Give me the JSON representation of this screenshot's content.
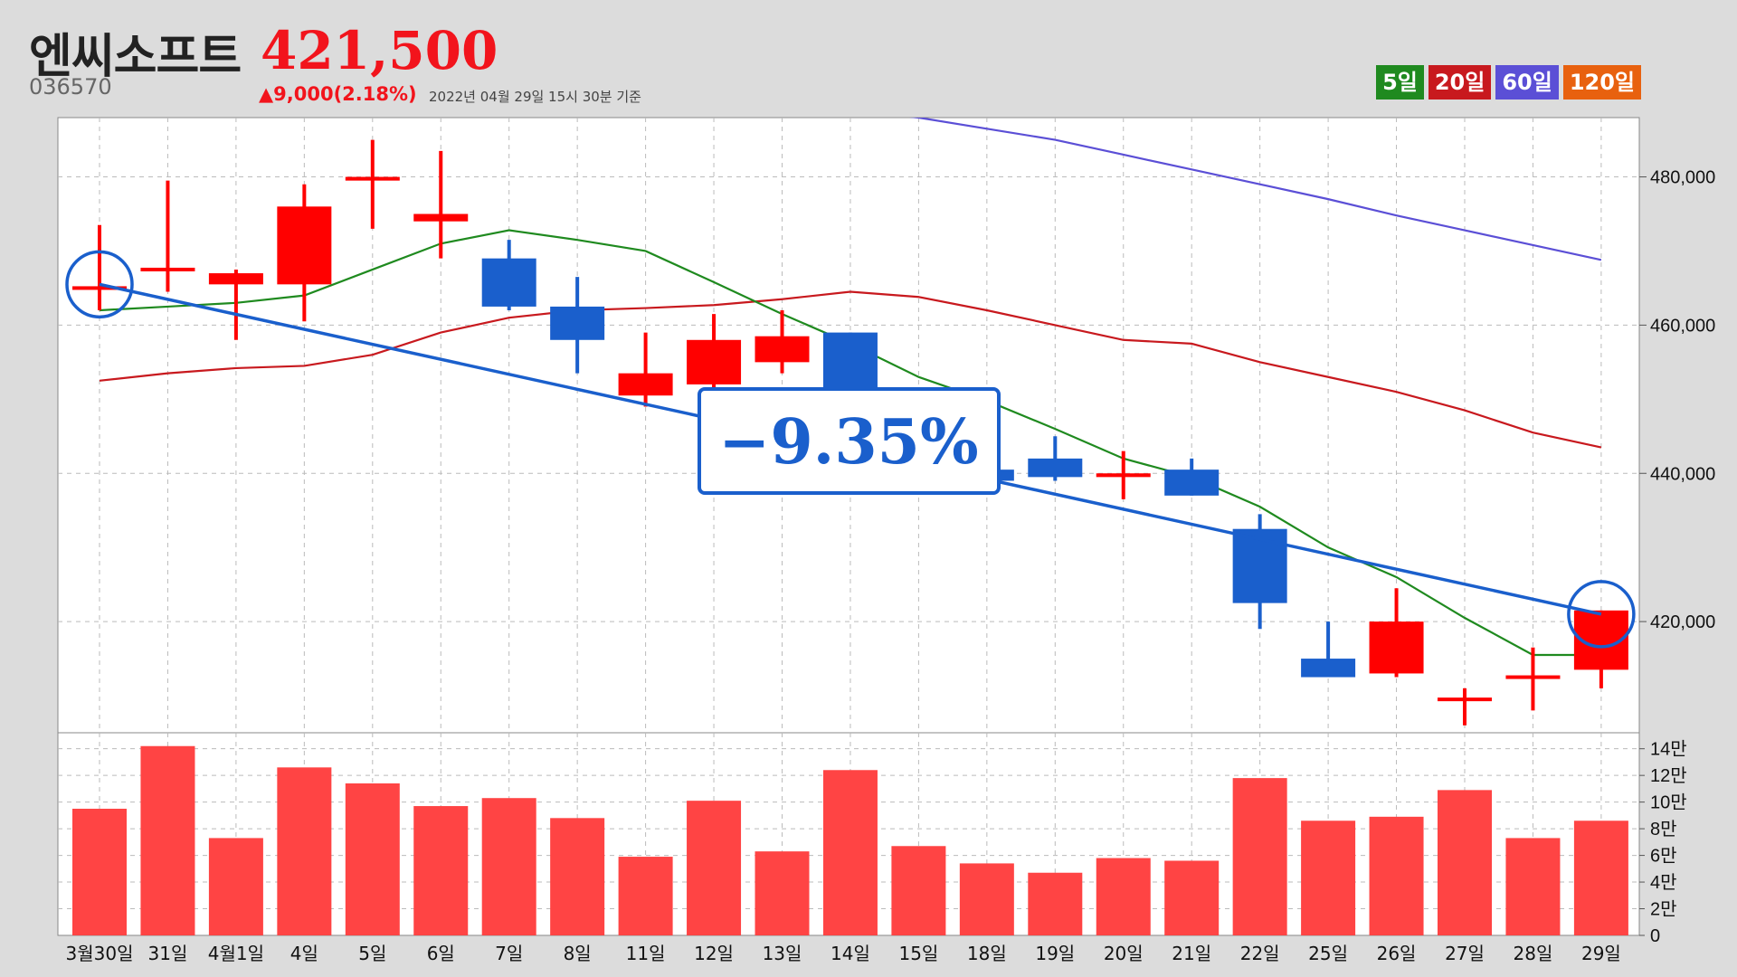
{
  "header": {
    "name": "엔씨소프트",
    "code": "036570",
    "price": "421,500",
    "change": "▲9,000(2.18%)",
    "timestamp": "2022년 04월 29일 15시 30분 기준"
  },
  "legend": [
    {
      "label": "5일",
      "color": "#1f8a1f"
    },
    {
      "label": "20일",
      "color": "#c8191e"
    },
    {
      "label": "60일",
      "color": "#5b4fd6"
    },
    {
      "label": "120일",
      "color": "#e8610f"
    }
  ],
  "colors": {
    "up": "#ff0000",
    "down": "#1a5fcc",
    "volume": "#ff4444",
    "trend": "#1a5fcc"
  },
  "callout": {
    "text": "−9.35%"
  },
  "chart_data": {
    "type": "candlestick",
    "categories": [
      "3월30일",
      "31일",
      "4월1일",
      "4일",
      "5일",
      "6일",
      "7일",
      "8일",
      "11일",
      "12일",
      "13일",
      "14일",
      "15일",
      "18일",
      "19일",
      "20일",
      "21일",
      "22일",
      "25일",
      "26일",
      "27일",
      "28일",
      "29일"
    ],
    "ohlc": [
      {
        "o": 465000,
        "h": 473500,
        "l": 462000,
        "c": 465000
      },
      {
        "o": 467500,
        "h": 479500,
        "l": 464500,
        "c": 467500
      },
      {
        "o": 465500,
        "h": 467500,
        "l": 458000,
        "c": 467000
      },
      {
        "o": 465500,
        "h": 479000,
        "l": 460500,
        "c": 476000
      },
      {
        "o": 479500,
        "h": 485000,
        "l": 473000,
        "c": 480000
      },
      {
        "o": 474000,
        "h": 483500,
        "l": 469000,
        "c": 475000
      },
      {
        "o": 469000,
        "h": 471500,
        "l": 462000,
        "c": 462500
      },
      {
        "o": 462500,
        "h": 466500,
        "l": 453500,
        "c": 458000
      },
      {
        "o": 450500,
        "h": 459000,
        "l": 449000,
        "c": 453500
      },
      {
        "o": 452000,
        "h": 461500,
        "l": 450500,
        "c": 458000
      },
      {
        "o": 455000,
        "h": 462000,
        "l": 453500,
        "c": 458500
      },
      {
        "o": 459000,
        "h": 459000,
        "l": 449000,
        "c": 449500
      },
      {
        "o": 449000,
        "h": 449500,
        "l": 442000,
        "c": 443000
      },
      {
        "o": 440500,
        "h": 443000,
        "l": 438500,
        "c": 439000
      },
      {
        "o": 442000,
        "h": 445000,
        "l": 439000,
        "c": 439500
      },
      {
        "o": 439500,
        "h": 443000,
        "l": 436500,
        "c": 440000
      },
      {
        "o": 440500,
        "h": 442000,
        "l": 437000,
        "c": 437000
      },
      {
        "o": 432500,
        "h": 434500,
        "l": 419000,
        "c": 422500
      },
      {
        "o": 415000,
        "h": 420000,
        "l": 412500,
        "c": 412500
      },
      {
        "o": 413000,
        "h": 424500,
        "l": 412500,
        "c": 420000
      },
      {
        "o": 409500,
        "h": 411000,
        "l": 406000,
        "c": 409500
      },
      {
        "o": 412500,
        "h": 416500,
        "l": 408000,
        "c": 412500
      },
      {
        "o": 413500,
        "h": 421500,
        "l": 411000,
        "c": 421500
      }
    ],
    "ma5": [
      462000,
      462500,
      463000,
      464000,
      467500,
      471000,
      472800,
      471500,
      470000,
      465800,
      461500,
      457500,
      453000,
      449800,
      446000,
      442000,
      439500,
      435500,
      430000,
      426000,
      420500,
      415500,
      415500
    ],
    "ma20": [
      452500,
      453500,
      454200,
      454500,
      456000,
      459000,
      461000,
      462000,
      462300,
      462700,
      463500,
      464500,
      463800,
      462000,
      460000,
      458000,
      457500,
      455000,
      453000,
      451000,
      448500,
      445500,
      443500
    ],
    "ma60": [
      489000,
      488000,
      486500,
      485000,
      483000,
      481000,
      479000,
      477000,
      474800,
      472800,
      470800,
      468800
    ],
    "ma60_x_start": 11,
    "trendline": {
      "from": {
        "x": 0,
        "y": 465500
      },
      "to": {
        "x": 22,
        "y": 421000
      }
    },
    "volume": [
      95000,
      142000,
      73000,
      126000,
      114000,
      97000,
      103000,
      88000,
      59000,
      101000,
      63000,
      124000,
      67000,
      54000,
      47000,
      58000,
      56000,
      118000,
      86000,
      89000,
      109000,
      73000,
      86000
    ],
    "ylim": [
      405000,
      488000
    ],
    "yticks": [
      420000,
      440000,
      460000,
      480000
    ],
    "ytick_labels": [
      "420,000",
      "440,000",
      "460,000",
      "480,000"
    ],
    "vol_ylim": [
      0,
      152000
    ],
    "vol_ticks": [
      0,
      20000,
      40000,
      60000,
      80000,
      100000,
      120000,
      140000
    ],
    "vol_tick_labels": [
      "0",
      "2만",
      "4만",
      "6만",
      "8만",
      "10만",
      "12만",
      "14만"
    ],
    "markers": [
      0,
      22
    ],
    "grid": true
  }
}
